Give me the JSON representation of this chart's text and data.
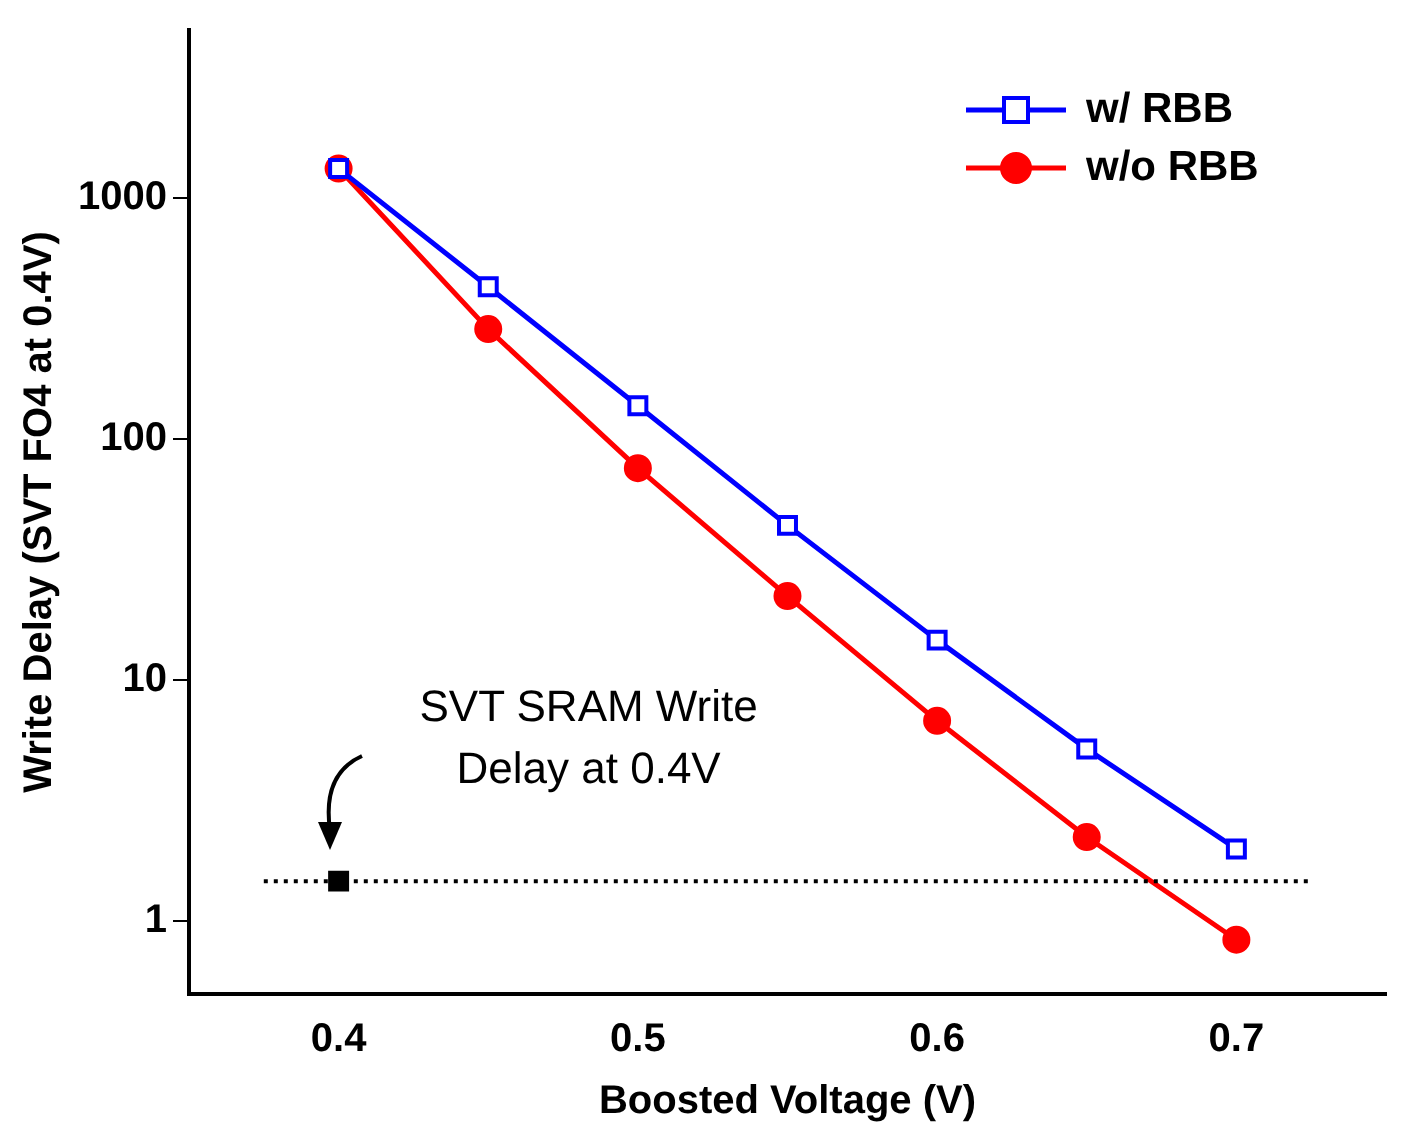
{
  "chart_data": {
    "type": "line",
    "xlabel": "Boosted Voltage (V)",
    "ylabel": "Write Delay (SVT FO4 at 0.4V)",
    "x": [
      0.4,
      0.45,
      0.5,
      0.55,
      0.6,
      0.65,
      0.7
    ],
    "series": [
      {
        "name": "w/ RBB",
        "color": "#0000ff",
        "marker": "square",
        "values": [
          1330,
          430,
          138,
          44,
          14.7,
          5.2,
          2.0
        ]
      },
      {
        "name": "w/o RBB",
        "color": "#ff0000",
        "marker": "circle",
        "values": [
          1330,
          287,
          76,
          22.4,
          6.8,
          2.24,
          0.84
        ]
      },
      {
        "type": "scatter",
        "color": "#000000",
        "marker": "square",
        "x": [
          0.4
        ],
        "values": [
          1.47
        ]
      }
    ],
    "log": "y",
    "xlim": [
      0.35,
      0.75
    ],
    "xticks": [
      0.4,
      0.5,
      0.6,
      0.7
    ],
    "ylim": [
      0.5,
      5000
    ],
    "yticks": [
      1,
      10,
      100,
      1000
    ],
    "ref_lines": [
      {
        "axis": "y",
        "value": 1.47,
        "line_style": "dotted",
        "color": "#000000"
      }
    ],
    "annotations": [
      {
        "text": "SVT SRAM Write\nDelay at 0.4V",
        "x": 0.4,
        "y": 1.47
      }
    ],
    "legend": "top right",
    "grid": false
  }
}
